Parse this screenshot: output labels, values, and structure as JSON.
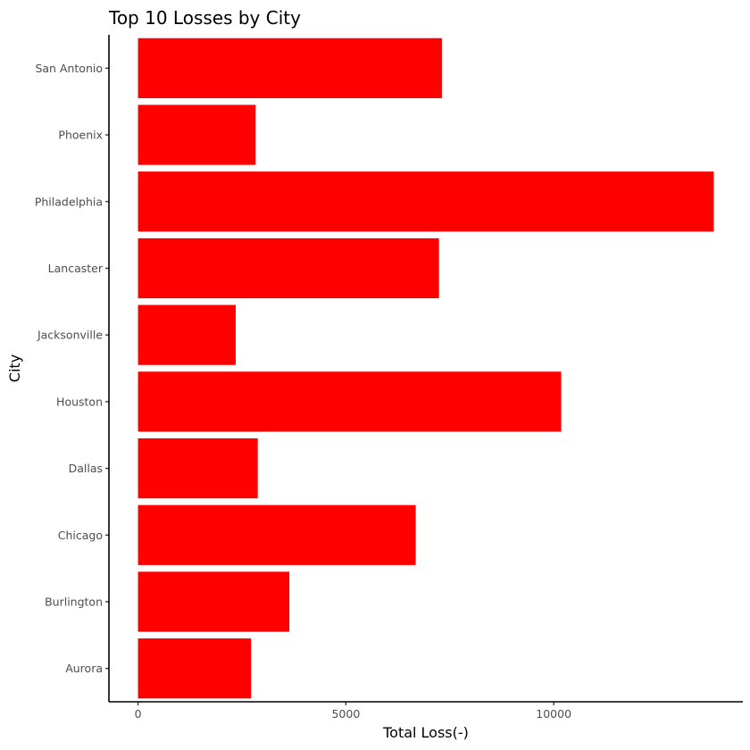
{
  "chart_data": {
    "type": "bar",
    "orientation": "horizontal",
    "title": "Top 10 Losses by City",
    "xlabel": "Total Loss(-)",
    "ylabel": "City",
    "categories": [
      "Aurora",
      "Burlington",
      "Chicago",
      "Dallas",
      "Houston",
      "Jacksonville",
      "Lancaster",
      "Philadelphia",
      "Phoenix",
      "San Antonio"
    ],
    "values": [
      2720,
      3640,
      6680,
      2880,
      10180,
      2350,
      7240,
      13850,
      2830,
      7310
    ],
    "xlim": [
      -700,
      14550
    ],
    "x_ticks": [
      0,
      5000,
      10000
    ],
    "x_tick_labels": [
      "0",
      "5000",
      "10000"
    ],
    "bar_color": "#ff0000",
    "grid": false,
    "legend": "none"
  }
}
